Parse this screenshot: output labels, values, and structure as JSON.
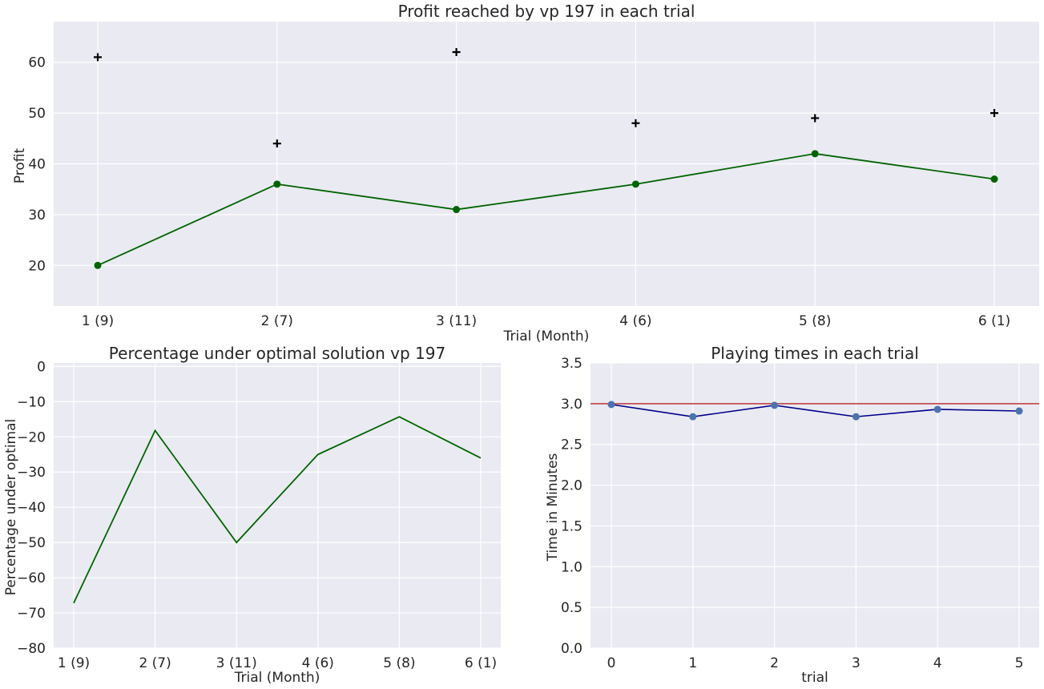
{
  "colors": {
    "panel_bg": "#eaeaf2",
    "grid": "#ffffff",
    "profit_line": "#006400",
    "optimal_marker": "#000000",
    "time_line": "#00008b",
    "time_marker": "#4c72b0",
    "limit_line": "#c44e52"
  },
  "chart_data": [
    {
      "type": "line",
      "title": "Profit reached by vp 197 in each trial",
      "xlabel": "Trial (Month)",
      "ylabel": "Profit",
      "categories": [
        "1 (9)",
        "2 (7)",
        "3 (11)",
        "4 (6)",
        "5 (8)",
        "6 (1)"
      ],
      "yticks": [
        "20",
        "30",
        "40",
        "50",
        "60"
      ],
      "ylim": [
        12,
        68
      ],
      "grid": true,
      "series": [
        {
          "values": [
            20,
            36,
            31,
            36,
            42,
            37
          ],
          "style": "line-with-dots"
        },
        {
          "values": [
            61,
            44,
            62,
            48,
            49,
            50
          ],
          "style": "plus-markers"
        }
      ]
    },
    {
      "type": "line",
      "title": "Percentage under optimal solution vp 197",
      "xlabel": "Trial (Month)",
      "ylabel": "Percentage under optimal",
      "categories": [
        "1 (9)",
        "2 (7)",
        "3 (11)",
        "4 (6)",
        "5 (8)",
        "6 (1)"
      ],
      "yticks": [
        "0",
        "−10",
        "−20",
        "−30",
        "−40",
        "−50",
        "−60",
        "−70",
        "−80"
      ],
      "ylim": [
        -80,
        1
      ],
      "grid": true,
      "series": [
        {
          "values": [
            -67.2,
            -18.2,
            -50.0,
            -25.0,
            -14.3,
            -26.0
          ]
        }
      ]
    },
    {
      "type": "line",
      "title": "Playing times in each trial",
      "xlabel": "trial",
      "ylabel": "Time in Minutes",
      "x": [
        0,
        1,
        2,
        3,
        4,
        5
      ],
      "xticks": [
        "0",
        "1",
        "2",
        "3",
        "4",
        "5"
      ],
      "yticks": [
        "0.0",
        "0.5",
        "1.0",
        "1.5",
        "2.0",
        "2.5",
        "3.0",
        "3.5"
      ],
      "ylim": [
        0,
        3.5
      ],
      "grid": true,
      "reference_line_y": 3.0,
      "series": [
        {
          "values": [
            2.99,
            2.84,
            2.98,
            2.84,
            2.93,
            2.91
          ]
        }
      ]
    }
  ]
}
